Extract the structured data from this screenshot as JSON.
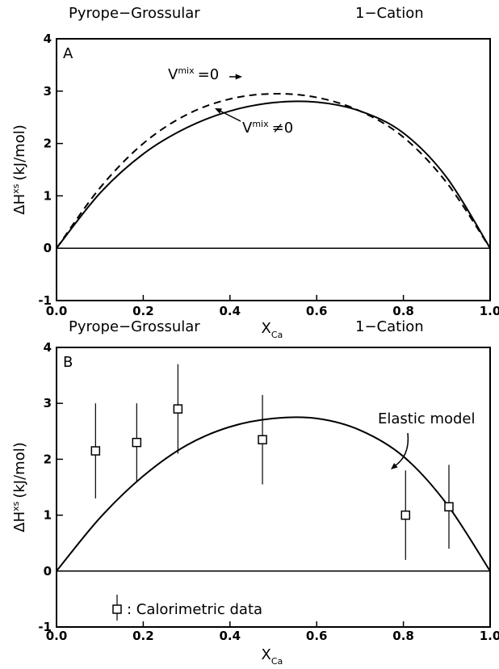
{
  "chart_data": [
    {
      "type": "line",
      "title_left": "Pyrope−Grossular",
      "title_right": "1−Cation",
      "panel_label": "A",
      "xlabel": {
        "main": "X",
        "sub": "Ca"
      },
      "ylabel": {
        "main": "ΔH",
        "sup": "xs",
        "unit": "(kJ/mol)"
      },
      "x": [
        0,
        0.1,
        0.2,
        0.3,
        0.4,
        0.5,
        0.6,
        0.7,
        0.8,
        0.9,
        1.0
      ],
      "series": [
        {
          "color": "#000000",
          "dash": false,
          "values": [
            0,
            1.05,
            1.8,
            2.3,
            2.62,
            2.78,
            2.79,
            2.62,
            2.2,
            1.35,
            0
          ]
        },
        {
          "color": "#000000",
          "dash": true,
          "values": [
            0,
            1.15,
            2.0,
            2.55,
            2.85,
            2.95,
            2.88,
            2.62,
            2.12,
            1.25,
            0
          ]
        }
      ],
      "annotations": [
        {
          "main": "V",
          "sup": "mix",
          "rest": "=0"
        },
        {
          "main": "V",
          "sup": "mix",
          "rest": "≠0"
        }
      ],
      "xlim": [
        0,
        1
      ],
      "xticks": [
        {
          "value": 0,
          "label": "0.0"
        },
        0.2,
        0.4,
        0.6,
        0.8,
        {
          "value": 1,
          "label": "1.0"
        }
      ],
      "ylim": [
        -1,
        4
      ],
      "yticks": [
        -1,
        0,
        1,
        2,
        3,
        4
      ]
    },
    {
      "type": "line",
      "title_left": "Pyrope−Grossular",
      "title_right": "1−Cation",
      "panel_label": "B",
      "xlabel": {
        "main": "X",
        "sub": "Ca"
      },
      "ylabel": {
        "main": "ΔH",
        "sup": "xs",
        "unit": "(kJ/mol)"
      },
      "x": [
        0,
        0.1,
        0.2,
        0.3,
        0.4,
        0.5,
        0.6,
        0.7,
        0.8,
        0.9,
        1.0
      ],
      "series": [
        {
          "color": "#000000",
          "dash": false,
          "values": [
            0,
            0.95,
            1.7,
            2.25,
            2.58,
            2.73,
            2.73,
            2.52,
            2.05,
            1.2,
            0
          ]
        }
      ],
      "markers": {
        "name": ": Calorimetric data",
        "x": [
          0.09,
          0.185,
          0.28,
          0.475,
          0.805,
          0.905
        ],
        "values": [
          2.15,
          2.3,
          2.9,
          2.35,
          1.0,
          1.15
        ],
        "errors": [
          0.85,
          0.7,
          0.8,
          0.8,
          0.8,
          0.75
        ]
      },
      "annotations": [
        {
          "main": "Elastic model"
        }
      ],
      "xlim": [
        0,
        1
      ],
      "xticks": [
        {
          "value": 0,
          "label": "0.0"
        },
        0.2,
        0.4,
        0.6,
        0.8,
        {
          "value": 1,
          "label": "1.0"
        }
      ],
      "ylim": [
        -1,
        4
      ],
      "yticks": [
        -1,
        0,
        1,
        2,
        3,
        4
      ]
    }
  ]
}
